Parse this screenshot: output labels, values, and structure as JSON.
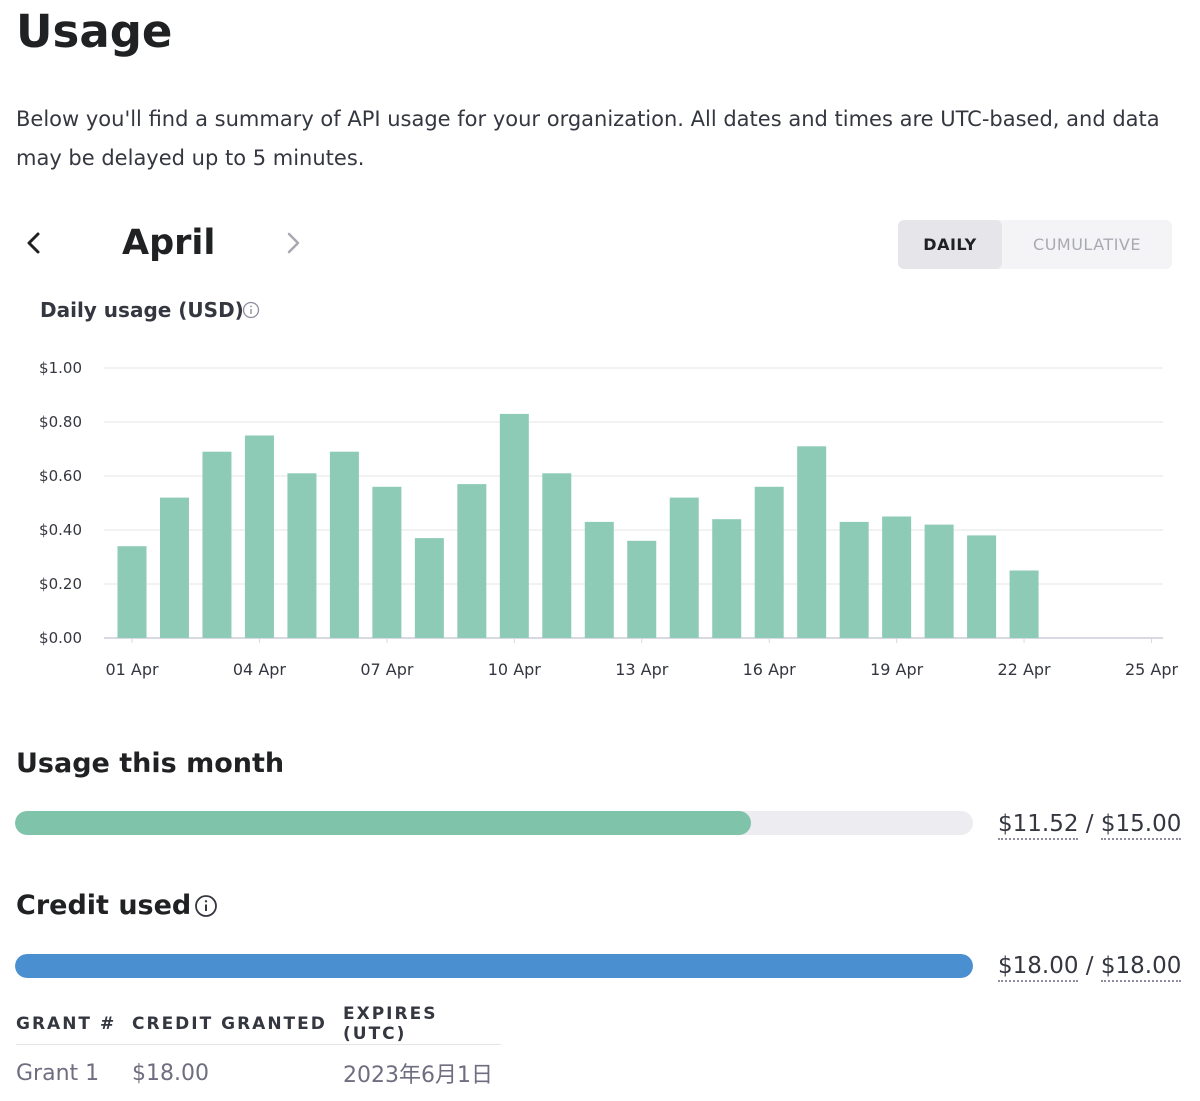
{
  "page": {
    "title": "Usage",
    "intro": "Below you'll find a summary of API usage for your organization. All dates and times are UTC-based, and data may be delayed up to 5 minutes."
  },
  "month_nav": {
    "month": "April",
    "prev_icon": "chevron-left-icon",
    "next_icon": "chevron-right-icon"
  },
  "view_toggle": {
    "daily": "DAILY",
    "cumulative": "CUMULATIVE",
    "selected": "DAILY"
  },
  "chart_header": {
    "title": "Daily usage (USD)",
    "info_icon": "info-icon"
  },
  "chart_data": {
    "type": "bar",
    "title": "Daily usage (USD)",
    "xlabel": "",
    "ylabel": "",
    "color": "#8ecbb6",
    "ylim": [
      0,
      1.0
    ],
    "y_ticks": [
      {
        "value": 0.0,
        "label": "$0.00"
      },
      {
        "value": 0.2,
        "label": "$0.20"
      },
      {
        "value": 0.4,
        "label": "$0.40"
      },
      {
        "value": 0.6,
        "label": "$0.60"
      },
      {
        "value": 0.8,
        "label": "$0.80"
      },
      {
        "value": 1.0,
        "label": "$1.00"
      }
    ],
    "categories": [
      "01 Apr",
      "02 Apr",
      "03 Apr",
      "04 Apr",
      "05 Apr",
      "06 Apr",
      "07 Apr",
      "08 Apr",
      "09 Apr",
      "10 Apr",
      "11 Apr",
      "12 Apr",
      "13 Apr",
      "14 Apr",
      "15 Apr",
      "16 Apr",
      "17 Apr",
      "18 Apr",
      "19 Apr",
      "20 Apr",
      "21 Apr",
      "22 Apr",
      "23 Apr",
      "24 Apr",
      "25 Apr"
    ],
    "values": [
      0.34,
      0.52,
      0.69,
      0.75,
      0.61,
      0.69,
      0.56,
      0.37,
      0.57,
      0.83,
      0.61,
      0.43,
      0.36,
      0.52,
      0.44,
      0.56,
      0.71,
      0.43,
      0.45,
      0.42,
      0.38,
      0.25,
      null,
      null,
      null
    ],
    "x_tick_labels": [
      "01 Apr",
      "04 Apr",
      "07 Apr",
      "10 Apr",
      "13 Apr",
      "16 Apr",
      "19 Apr",
      "22 Apr",
      "25 Apr"
    ],
    "grid": true,
    "legend": "none"
  },
  "usage_month": {
    "title": "Usage this month",
    "used": "$11.52",
    "limit": "$15.00",
    "fraction": 0.768,
    "color": "#7fc4aa"
  },
  "credit": {
    "title": "Credit used",
    "info_icon": "info-icon",
    "used": "$18.00",
    "total": "$18.00",
    "fraction": 1.0,
    "color": "#4a90d1"
  },
  "grants": {
    "headers": [
      "GRANT #",
      "CREDIT GRANTED",
      "EXPIRES (UTC)"
    ],
    "rows": [
      [
        "Grant 1",
        "$18.00",
        "2023年6月1日"
      ]
    ]
  },
  "colors": {
    "text": "#202123",
    "grid": "#e5e5e9",
    "axis": "#d9d9e3"
  }
}
